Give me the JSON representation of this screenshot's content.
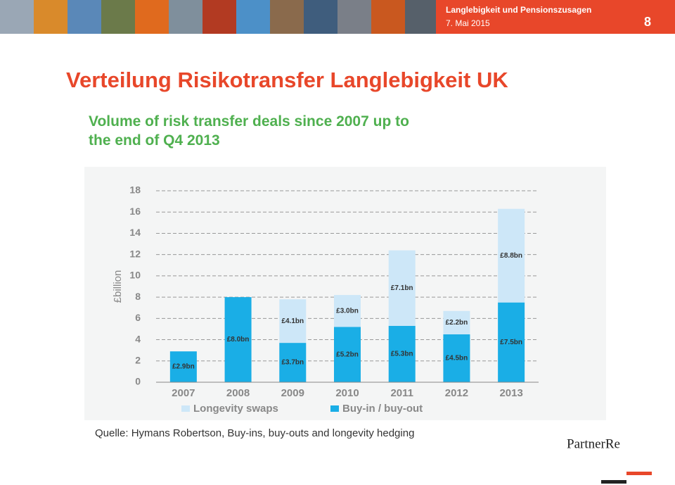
{
  "header": {
    "subject": "Langlebigkeit und Pensionszusagen",
    "date": "7. Mai 2015",
    "page": "8"
  },
  "slide_title": "Verteilung Risikotransfer Langlebigkeit UK",
  "chart_data": {
    "type": "stacked_bar",
    "title": "Volume of risk transfer deals since 2007 up to the end of Q4 2013",
    "y_label": "£billion",
    "categories": [
      "2007",
      "2008",
      "2009",
      "2010",
      "2011",
      "2012",
      "2013"
    ],
    "series": [
      {
        "name": "Longevity swaps",
        "color": "#cde7f8",
        "values": [
          null,
          null,
          4.1,
          3.0,
          7.1,
          2.2,
          8.8
        ],
        "value_labels": [
          null,
          null,
          "£4.1bn",
          "£3.0bn",
          "£7.1bn",
          "£2.2bn",
          "£8.8bn"
        ]
      },
      {
        "name": "Buy-in / buy-out",
        "color": "#1aaee6",
        "values": [
          2.9,
          8.0,
          3.7,
          5.2,
          5.3,
          4.5,
          7.5
        ],
        "value_labels": [
          "£2.9bn",
          "£8.0bn",
          "£3.7bn",
          "£5.2bn",
          "£5.3bn",
          "£4.5bn",
          "£7.5bn"
        ]
      }
    ],
    "ylim": [
      0,
      18
    ],
    "yticks": [
      0,
      2,
      4,
      6,
      8,
      10,
      12,
      14,
      16,
      18
    ],
    "grid": true
  },
  "source": "Quelle: Hymans Robertson, Buy-ins, buy-outs and longevity hedging",
  "logo": "PartnerRe"
}
